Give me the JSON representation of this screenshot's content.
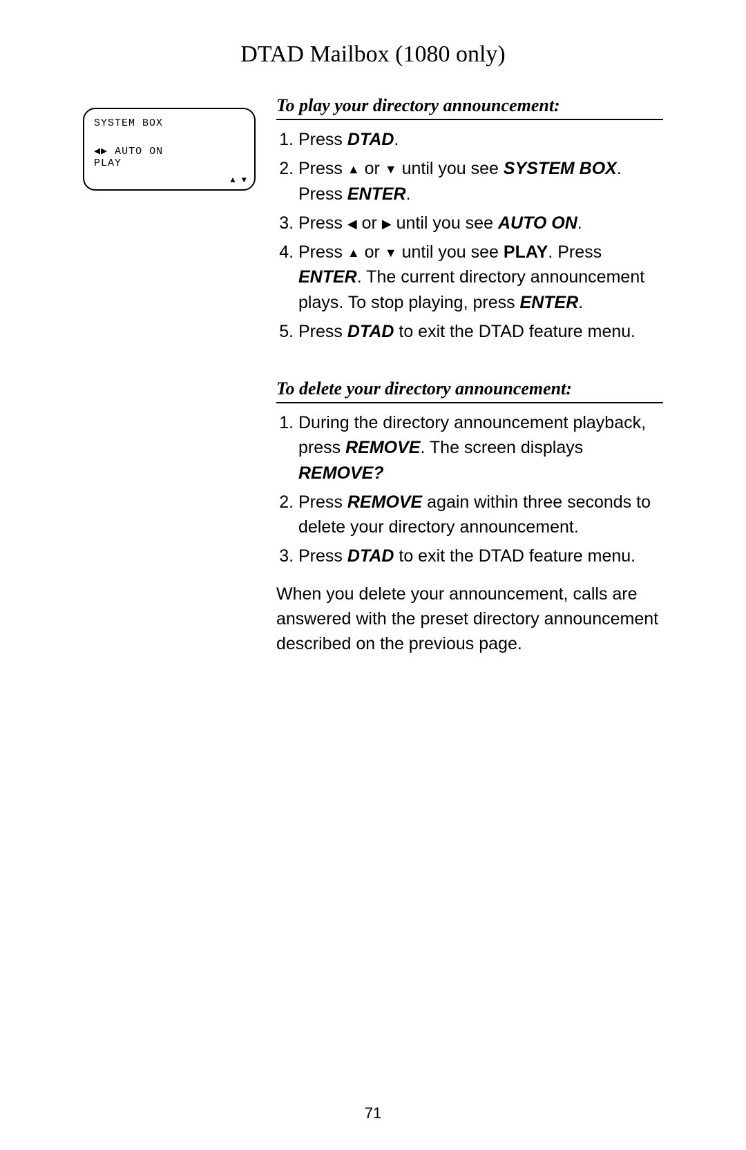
{
  "title": "DTAD Mailbox (1080 only)",
  "lcd": {
    "line1": "SYSTEM BOX",
    "line2": "◀▶ AUTO ON",
    "line3": "PLAY",
    "arrows": "▲\n▼"
  },
  "section1": {
    "heading": "To play your directory announcement:",
    "steps": [
      {
        "pre": "Press ",
        "b1": "DTAD",
        "post1": "."
      },
      {
        "pre": "Press ",
        "tri1": "▲",
        "mid1": " or ",
        "tri2": "▼",
        "mid2": " until you see ",
        "b1": "SYSTEM BOX",
        "post1": ". Press ",
        "b2": "ENTER",
        "post2": "."
      },
      {
        "pre": "Press ",
        "tri1": "◀",
        "mid1": " or ",
        "tri2": "▶",
        "mid2": " until you see ",
        "b1": "AUTO ON",
        "post1": "."
      },
      {
        "pre": "Press ",
        "tri1": "▲",
        "mid1": " or ",
        "tri2": "▼",
        "mid2": " until you see ",
        "b1": "PLAY",
        "post1": ". Press ",
        "b2": "ENTER",
        "post2": ". The current directory announcement plays. To stop playing, press ",
        "b3": "ENTER",
        "post3": "."
      },
      {
        "pre": "Press ",
        "b1": "DTAD",
        "post1": " to exit the DTAD feature menu."
      }
    ]
  },
  "section2": {
    "heading": "To delete your directory announcement:",
    "steps": [
      {
        "pre": "During the directory announcement playback, press ",
        "b1": "REMOVE",
        "post1": ". The screen displays ",
        "b2": "REMOVE?",
        "post2": ""
      },
      {
        "pre": "Press ",
        "b1": "REMOVE",
        "post1": " again within three seconds to delete your directory announcement."
      },
      {
        "pre": "Press ",
        "b1": "DTAD",
        "post1": " to exit the DTAD feature menu."
      }
    ],
    "tail": "When you delete your announcement, calls are answered with the preset directory announcement described on the previous page."
  },
  "pagenum": "71"
}
